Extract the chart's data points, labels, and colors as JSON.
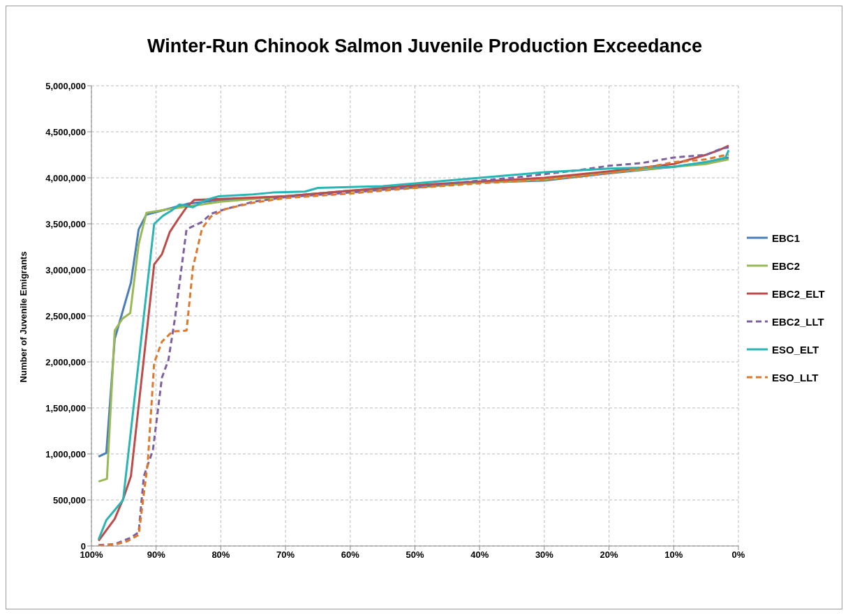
{
  "chart_data": {
    "type": "line",
    "title": "Winter-Run Chinook Salmon Juvenile Production Exceedance",
    "ylabel": "Number of Juvenile Emigrants",
    "xlim": [
      100,
      0
    ],
    "xticks": [
      {
        "value": 100,
        "label": "100%"
      },
      {
        "value": 90,
        "label": "90%"
      },
      {
        "value": 80,
        "label": "80%"
      },
      {
        "value": 70,
        "label": "70%"
      },
      {
        "value": 60,
        "label": "60%"
      },
      {
        "value": 50,
        "label": "50%"
      },
      {
        "value": 40,
        "label": "40%"
      },
      {
        "value": 30,
        "label": "30%"
      },
      {
        "value": 20,
        "label": "20%"
      },
      {
        "value": 10,
        "label": "10%"
      },
      {
        "value": 0,
        "label": "0%"
      }
    ],
    "ylim": [
      0,
      5000000
    ],
    "yticks": [
      0,
      {
        "value": 500000,
        "label": "500,000"
      },
      {
        "value": 1000000,
        "label": "1,000,000"
      },
      {
        "value": 1500000,
        "label": "1,500,000"
      },
      {
        "value": 2000000,
        "label": "2,000,000"
      },
      {
        "value": 2500000,
        "label": "2,500,000"
      },
      {
        "value": 3000000,
        "label": "3,000,000"
      },
      {
        "value": 3500000,
        "label": "3,500,000"
      },
      {
        "value": 4000000,
        "label": "4,000,000"
      },
      {
        "value": 4500000,
        "label": "4,500,000"
      },
      {
        "value": 5000000,
        "label": "5,000,000"
      }
    ],
    "grid": true,
    "legend": "right",
    "marker": "none",
    "series": [
      {
        "name": "EBC1",
        "color": "#4a7ebb",
        "line_style": "solid",
        "x": [
          98.9,
          97.7,
          96.4,
          93.9,
          92.7,
          91.5,
          85,
          80,
          70,
          60,
          50,
          40,
          30,
          20,
          10,
          5,
          1.5
        ],
        "values": [
          970000,
          1010000,
          2250000,
          2860000,
          3440000,
          3600000,
          3720000,
          3760000,
          3800000,
          3860000,
          3900000,
          3950000,
          3970000,
          4050000,
          4120000,
          4170000,
          4220000
        ]
      },
      {
        "name": "EBC2",
        "color": "#98b954",
        "line_style": "solid",
        "x": [
          98.9,
          97.6,
          96.4,
          95.2,
          94,
          92.7,
          91.5,
          88,
          80,
          70,
          60,
          50,
          40,
          30,
          20,
          10,
          5,
          1.5
        ],
        "values": [
          700000,
          730000,
          2340000,
          2470000,
          2530000,
          3280000,
          3620000,
          3660000,
          3740000,
          3800000,
          3860000,
          3890000,
          3950000,
          3980000,
          4060000,
          4120000,
          4150000,
          4200000
        ]
      },
      {
        "name": "EBC2_ELT",
        "color": "#be4b48",
        "line_style": "solid",
        "x": [
          98.9,
          96.4,
          95.1,
          93.9,
          90.3,
          89.1,
          87.9,
          86.5,
          85.3,
          84.1,
          80,
          70,
          60,
          50,
          40,
          30,
          20,
          10,
          5,
          3,
          1.5
        ],
        "values": [
          56000,
          295000,
          510000,
          757000,
          3060000,
          3170000,
          3410000,
          3560000,
          3680000,
          3760000,
          3770000,
          3800000,
          3860000,
          3920000,
          3960000,
          4000000,
          4070000,
          4150000,
          4250000,
          4300000,
          4350000
        ]
      },
      {
        "name": "EBC2_LLT",
        "color": "#7d60a0",
        "line_style": "dashed",
        "x": [
          98.9,
          96.4,
          93.9,
          92.7,
          91.9,
          90.5,
          89.1,
          88.1,
          87.1,
          85.3,
          82.9,
          81.5,
          79.3,
          75,
          70,
          60,
          50,
          40,
          35,
          25,
          20,
          15,
          10,
          5,
          2.5,
          1.5
        ],
        "values": [
          10000,
          20000,
          90000,
          150000,
          757000,
          1040000,
          1830000,
          2020000,
          2470000,
          3440000,
          3520000,
          3610000,
          3660000,
          3740000,
          3790000,
          3840000,
          3900000,
          3970000,
          4000000,
          4080000,
          4130000,
          4160000,
          4220000,
          4250000,
          4320000,
          4330000
        ]
      },
      {
        "name": "ESO_ELT",
        "color": "#2ab5b5",
        "line_style": "solid",
        "x": [
          98.9,
          97.7,
          95.1,
          90.3,
          88.9,
          87.7,
          86.4,
          84.3,
          82.3,
          80.3,
          75,
          72,
          67,
          65,
          55,
          50,
          45,
          40,
          35,
          30,
          25,
          20,
          10,
          5,
          2,
          1.5
        ],
        "values": [
          70000,
          280000,
          500000,
          3500000,
          3590000,
          3640000,
          3710000,
          3680000,
          3760000,
          3800000,
          3820000,
          3840000,
          3850000,
          3890000,
          3910000,
          3940000,
          3970000,
          4000000,
          4030000,
          4060000,
          4080000,
          4100000,
          4120000,
          4170000,
          4220000,
          4300000
        ]
      },
      {
        "name": "ESO_LLT",
        "color": "#e0782c",
        "line_style": "dashed",
        "x": [
          98.9,
          96.4,
          94.5,
          92.7,
          91.3,
          90.3,
          89.1,
          87.5,
          85.3,
          84.3,
          82.9,
          81.5,
          79.3,
          75,
          70,
          60,
          50,
          40,
          30,
          25,
          20,
          15,
          10,
          5,
          2.5,
          1.5
        ],
        "values": [
          5000,
          15000,
          50000,
          120000,
          900000,
          1990000,
          2220000,
          2330000,
          2340000,
          3030000,
          3450000,
          3580000,
          3660000,
          3730000,
          3780000,
          3830000,
          3890000,
          3940000,
          3980000,
          4010000,
          4050000,
          4100000,
          4170000,
          4200000,
          4240000,
          4250000
        ]
      }
    ]
  }
}
